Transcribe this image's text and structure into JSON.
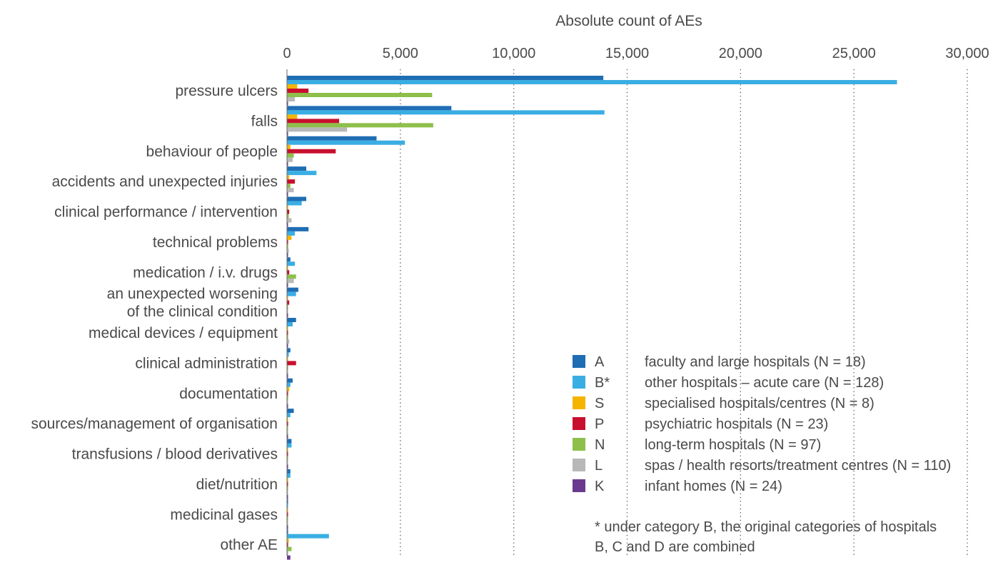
{
  "chart_data": {
    "type": "bar",
    "orientation": "horizontal",
    "title": "",
    "xlabel": "Absolute count of AEs",
    "ylabel": "",
    "xlim": [
      0,
      30000
    ],
    "x_ticks": [
      0,
      5000,
      10000,
      15000,
      20000,
      25000,
      30000
    ],
    "x_tick_labels": [
      "0",
      "5,000",
      "10,000",
      "15,000",
      "20,000",
      "25,000",
      "30,000"
    ],
    "grid": "vertical dotted",
    "legend_position": "bottom-right",
    "categories": [
      "pressure ulcers",
      "falls",
      "behaviour of people",
      "accidents and unexpected injuries",
      "clinical performance / intervention",
      "technical problems",
      "medication / i.v. drugs",
      "an unexpected worsening of the clinical condition",
      "medical devices / equipment",
      "clinical administration",
      "documentation",
      "sources/management of organisation",
      "transfusions / blood derivatives",
      "diet/nutrition",
      "medicinal gases",
      "other AE"
    ],
    "category_label_lines": [
      [
        "pressure ulcers"
      ],
      [
        "falls"
      ],
      [
        "behaviour of people"
      ],
      [
        "accidents and unexpected injuries"
      ],
      [
        "clinical performance / intervention"
      ],
      [
        "technical problems"
      ],
      [
        "medication / i.v. drugs"
      ],
      [
        "an unexpected worsening",
        "of the clinical condition"
      ],
      [
        "medical devices / equipment"
      ],
      [
        "clinical administration"
      ],
      [
        "documentation"
      ],
      [
        "sources/management of organisation"
      ],
      [
        "transfusions / blood derivatives"
      ],
      [
        "diet/nutrition"
      ],
      [
        "medicinal gases"
      ],
      [
        "other AE"
      ]
    ],
    "series": [
      {
        "name": "A",
        "label": "faculty and large hospitals (N = 18)",
        "color": "#1f6db3",
        "values": [
          13950,
          7250,
          3950,
          850,
          850,
          950,
          150,
          500,
          400,
          150,
          250,
          300,
          200,
          150,
          20,
          50
        ]
      },
      {
        "name": "B*",
        "label": "other hospitals – acute care (N = 128)",
        "color": "#3aaee3",
        "values": [
          26900,
          14000,
          5200,
          1300,
          650,
          350,
          350,
          400,
          250,
          80,
          150,
          150,
          200,
          150,
          30,
          1850
        ]
      },
      {
        "name": "S",
        "label": "specialised hospitals/centres (N = 8)",
        "color": "#f5b400",
        "values": [
          450,
          450,
          150,
          100,
          50,
          200,
          50,
          30,
          20,
          30,
          100,
          30,
          20,
          50,
          5,
          80
        ]
      },
      {
        "name": "P",
        "label": "psychiatric hospitals (N = 23)",
        "color": "#c8102e",
        "values": [
          950,
          2300,
          2150,
          350,
          100,
          50,
          100,
          100,
          30,
          400,
          50,
          50,
          30,
          20,
          5,
          50
        ]
      },
      {
        "name": "N",
        "label": "long-term hospitals (N = 97)",
        "color": "#8dbf4a",
        "values": [
          6400,
          6450,
          300,
          150,
          80,
          50,
          400,
          30,
          20,
          50,
          50,
          30,
          20,
          30,
          5,
          200
        ]
      },
      {
        "name": "L",
        "label": "spas / health resorts/treatment centres (N = 110)",
        "color": "#b8b8b8",
        "values": [
          350,
          2650,
          250,
          300,
          200,
          80,
          300,
          30,
          100,
          50,
          30,
          50,
          20,
          30,
          5,
          50
        ]
      },
      {
        "name": "K",
        "label": "infant homes (N = 24)",
        "color": "#6b3a8f",
        "values": [
          20,
          20,
          20,
          10,
          10,
          10,
          10,
          10,
          10,
          10,
          10,
          10,
          10,
          10,
          5,
          150
        ]
      }
    ],
    "note_lines": [
      "* under category B, the original categories of hospitals",
      "B, C and D are combined"
    ]
  }
}
